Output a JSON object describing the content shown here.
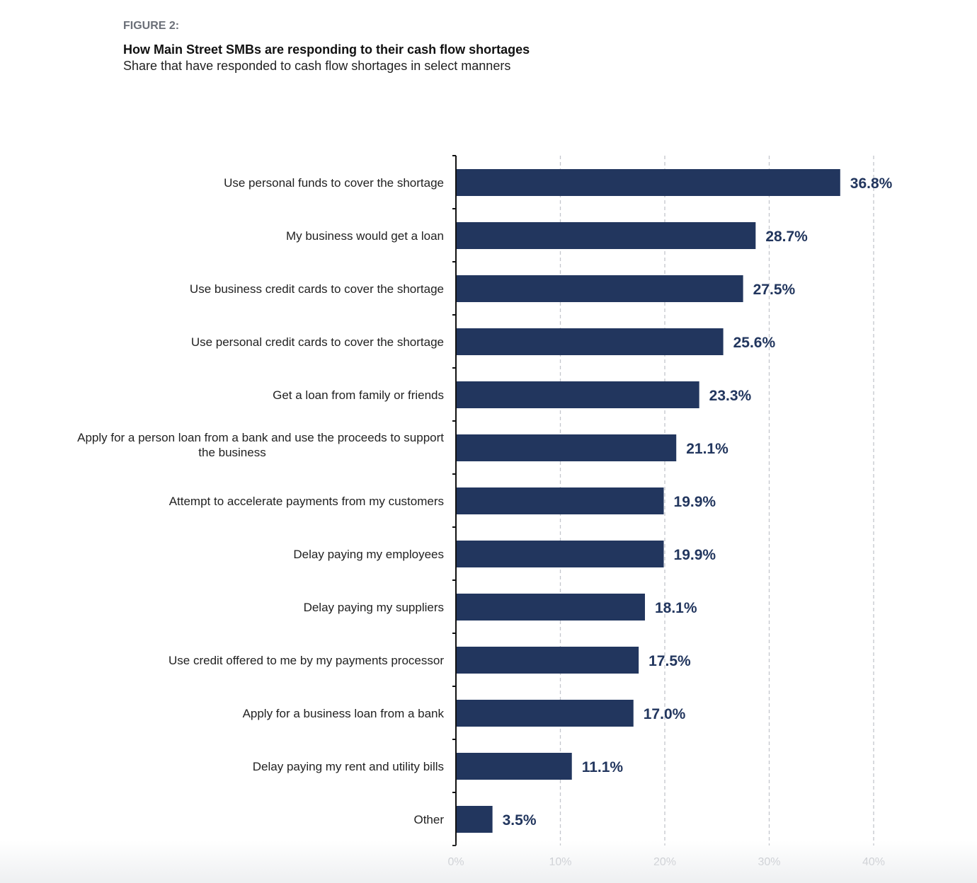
{
  "figure_label": "FIGURE 2:",
  "chart_data": {
    "type": "bar",
    "orientation": "horizontal",
    "title": "How Main Street SMBs are responding to their cash flow shortages",
    "subtitle": "Share that have responded to cash flow shortages in select manners",
    "xlabel": "",
    "ylabel": "",
    "xlim": [
      0,
      40
    ],
    "x_ticks": [
      "0%",
      "10%",
      "20%",
      "30%",
      "40%"
    ],
    "x_tick_values": [
      0,
      10,
      20,
      30,
      40
    ],
    "grid": "vertical dashed",
    "categories": [
      "Use personal funds to cover the shortage",
      "My business would get a loan",
      "Use business credit cards to cover the shortage",
      "Use personal credit cards to cover the shortage",
      "Get a loan from family or friends",
      "Apply for a person loan from a bank and use the proceeds to support the business",
      "Attempt to accelerate payments from my customers",
      "Delay paying my employees",
      "Delay paying my suppliers",
      "Use credit offered to me by my payments processor",
      "Apply for a business loan from a bank",
      "Delay paying my rent and utility bills",
      "Other"
    ],
    "values": [
      36.8,
      28.7,
      27.5,
      25.6,
      23.3,
      21.1,
      19.9,
      19.9,
      18.1,
      17.5,
      17.0,
      11.1,
      3.5
    ],
    "value_labels": [
      "36.8%",
      "28.7%",
      "27.5%",
      "25.6%",
      "23.3%",
      "21.1%",
      "19.9%",
      "19.9%",
      "18.1%",
      "17.5%",
      "17.0%",
      "11.1%",
      "3.5%"
    ],
    "bar_color": "#22365e",
    "label_color": "#22365e"
  }
}
